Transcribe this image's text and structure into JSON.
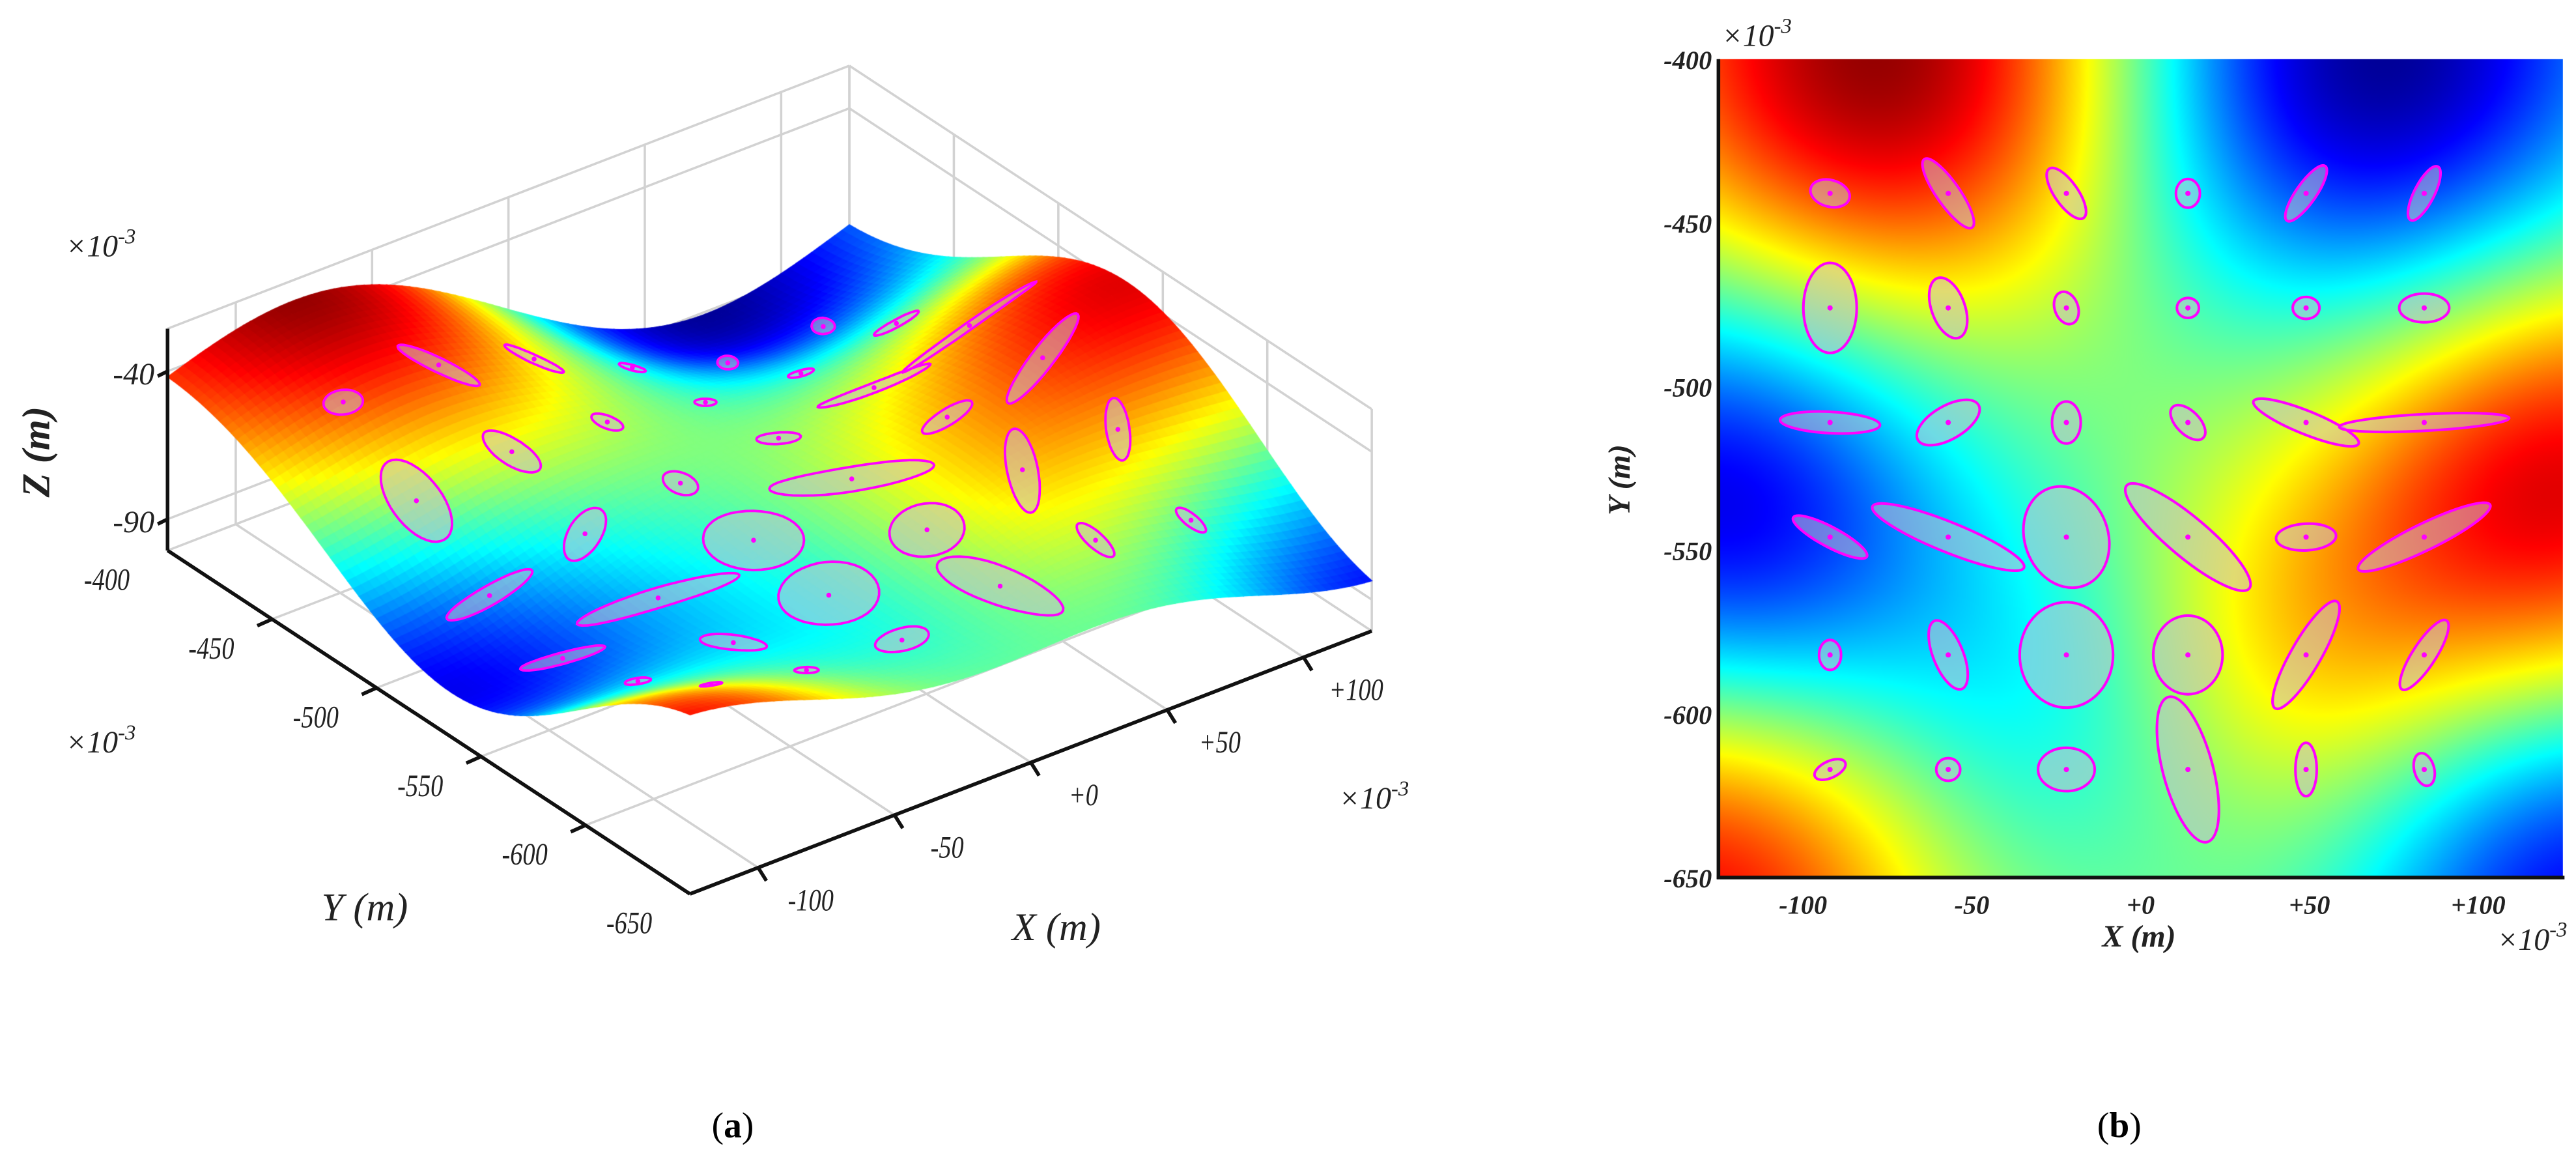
{
  "chart_data": [
    {
      "type": "surface",
      "panel_letter": "a",
      "xlabel": "X (m)",
      "ylabel": "Y (m)",
      "zlabel": "Z (m)",
      "scale_base": "×10",
      "scale_exp": "-3",
      "xlim": [
        -125,
        125
      ],
      "ylim": [
        -650,
        -400
      ],
      "zlim": [
        -100,
        -30
      ],
      "x_ticks": [
        {
          "value": -100,
          "label": "-100"
        },
        {
          "value": -50,
          "label": "-50"
        },
        {
          "value": 0,
          "label": "+0"
        },
        {
          "value": 50,
          "label": "+50"
        },
        {
          "value": 100,
          "label": "+100"
        }
      ],
      "y_ticks": [
        {
          "value": -400,
          "label": "-400"
        },
        {
          "value": -450,
          "label": "-450"
        },
        {
          "value": -500,
          "label": "-500"
        },
        {
          "value": -550,
          "label": "-550"
        },
        {
          "value": -600,
          "label": "-600"
        },
        {
          "value": -650,
          "label": "-650"
        }
      ],
      "z_ticks": [
        {
          "value": -40,
          "label": "-40"
        },
        {
          "value": -90,
          "label": "-90"
        }
      ],
      "colormap": "jet",
      "grid": true
    },
    {
      "type": "heatmap",
      "panel_letter": "b",
      "xlabel": "X (m)",
      "ylabel": "Y (m)",
      "scale_base": "×10",
      "scale_exp": "-3",
      "xlim": [
        -125,
        125
      ],
      "ylim": [
        -650,
        -400
      ],
      "x_ticks": [
        {
          "value": -100,
          "label": "-100"
        },
        {
          "value": -50,
          "label": "-50"
        },
        {
          "value": 0,
          "label": "+0"
        },
        {
          "value": 50,
          "label": "+50"
        },
        {
          "value": 100,
          "label": "+100"
        }
      ],
      "y_ticks": [
        {
          "value": -400,
          "label": "-400"
        },
        {
          "value": -450,
          "label": "-450"
        },
        {
          "value": -500,
          "label": "-500"
        },
        {
          "value": -550,
          "label": "-550"
        },
        {
          "value": -600,
          "label": "-600"
        },
        {
          "value": -650,
          "label": "-650"
        }
      ],
      "colormap": "jet",
      "grid": false
    }
  ],
  "surface_field": {
    "note_units": "normalized amplitude -1..1 (blue..red)",
    "peaks": [
      {
        "x": -75,
        "y": -400,
        "amp": 1.0,
        "sigma": 56
      },
      {
        "x": 69,
        "y": -400,
        "amp": -1.0,
        "sigma": 56
      },
      {
        "x": -125,
        "y": -537,
        "amp": -0.85,
        "sigma": 50
      },
      {
        "x": 125,
        "y": -531,
        "amp": 0.85,
        "sigma": 50
      },
      {
        "x": -131,
        "y": -656,
        "amp": 0.8,
        "sigma": 50
      },
      {
        "x": 131,
        "y": -656,
        "amp": -0.8,
        "sigma": 50
      },
      {
        "x": -25,
        "y": -600,
        "amp": -0.3,
        "sigma": 44
      },
      {
        "x": 44,
        "y": -587,
        "amp": 0.35,
        "sigma": 44
      }
    ]
  },
  "ellipses": {
    "stroke_color": "#ff00ff",
    "fields": [
      "x",
      "y",
      "semi_major",
      "semi_minor",
      "angle_deg"
    ],
    "items": [
      [
        -92,
        -441,
        6,
        4,
        15
      ],
      [
        -57,
        -441,
        12.5,
        3.5,
        55
      ],
      [
        -22,
        -441,
        9,
        3.5,
        55
      ],
      [
        14,
        -441,
        4.3,
        3.6,
        90
      ],
      [
        49,
        -441,
        10,
        3,
        -55
      ],
      [
        84,
        -441,
        9,
        3,
        -63
      ],
      [
        -92,
        -476,
        13.5,
        8,
        90
      ],
      [
        -57,
        -476,
        9.5,
        5,
        70
      ],
      [
        -22,
        -476,
        5,
        3.5,
        70
      ],
      [
        14,
        -476,
        3.3,
        3,
        0
      ],
      [
        49,
        -476,
        4,
        3.3,
        0
      ],
      [
        84,
        -476,
        7.5,
        4.3,
        0
      ],
      [
        -92,
        -511,
        15,
        3.2,
        3
      ],
      [
        -57,
        -511,
        10.5,
        5,
        -30
      ],
      [
        -22,
        -511,
        6.3,
        4.3,
        90
      ],
      [
        14,
        -511,
        6.5,
        3.5,
        45
      ],
      [
        49,
        -511,
        17,
        3.5,
        22
      ],
      [
        84,
        -511,
        25.5,
        2.5,
        -3
      ],
      [
        -92,
        -546,
        12.5,
        3,
        28
      ],
      [
        -57,
        -546,
        24.5,
        4.5,
        22
      ],
      [
        -22,
        -546,
        15.5,
        12.5,
        70
      ],
      [
        14,
        -546,
        24,
        6,
        40
      ],
      [
        49,
        -546,
        9,
        4,
        -3
      ],
      [
        84,
        -546,
        22,
        4,
        -26
      ],
      [
        -92,
        -582,
        4.5,
        3.3,
        90
      ],
      [
        -57,
        -582,
        11,
        4.5,
        68
      ],
      [
        -22,
        -582,
        15.8,
        14,
        90
      ],
      [
        14,
        -582,
        11.8,
        10.4,
        90
      ],
      [
        49,
        -582,
        18.5,
        4.5,
        -60
      ],
      [
        84,
        -582,
        12.3,
        3.5,
        -57
      ],
      [
        -92,
        -617,
        5,
        2.5,
        -25
      ],
      [
        -57,
        -617,
        3.6,
        3.4,
        0
      ],
      [
        -22,
        -617,
        8.5,
        6.5,
        0
      ],
      [
        14,
        -617,
        22.5,
        7.5,
        75
      ],
      [
        49,
        -617,
        8,
        3.2,
        90
      ],
      [
        84,
        -617,
        5,
        3,
        75
      ]
    ]
  },
  "caption": {
    "open": "(",
    "close": ")"
  }
}
